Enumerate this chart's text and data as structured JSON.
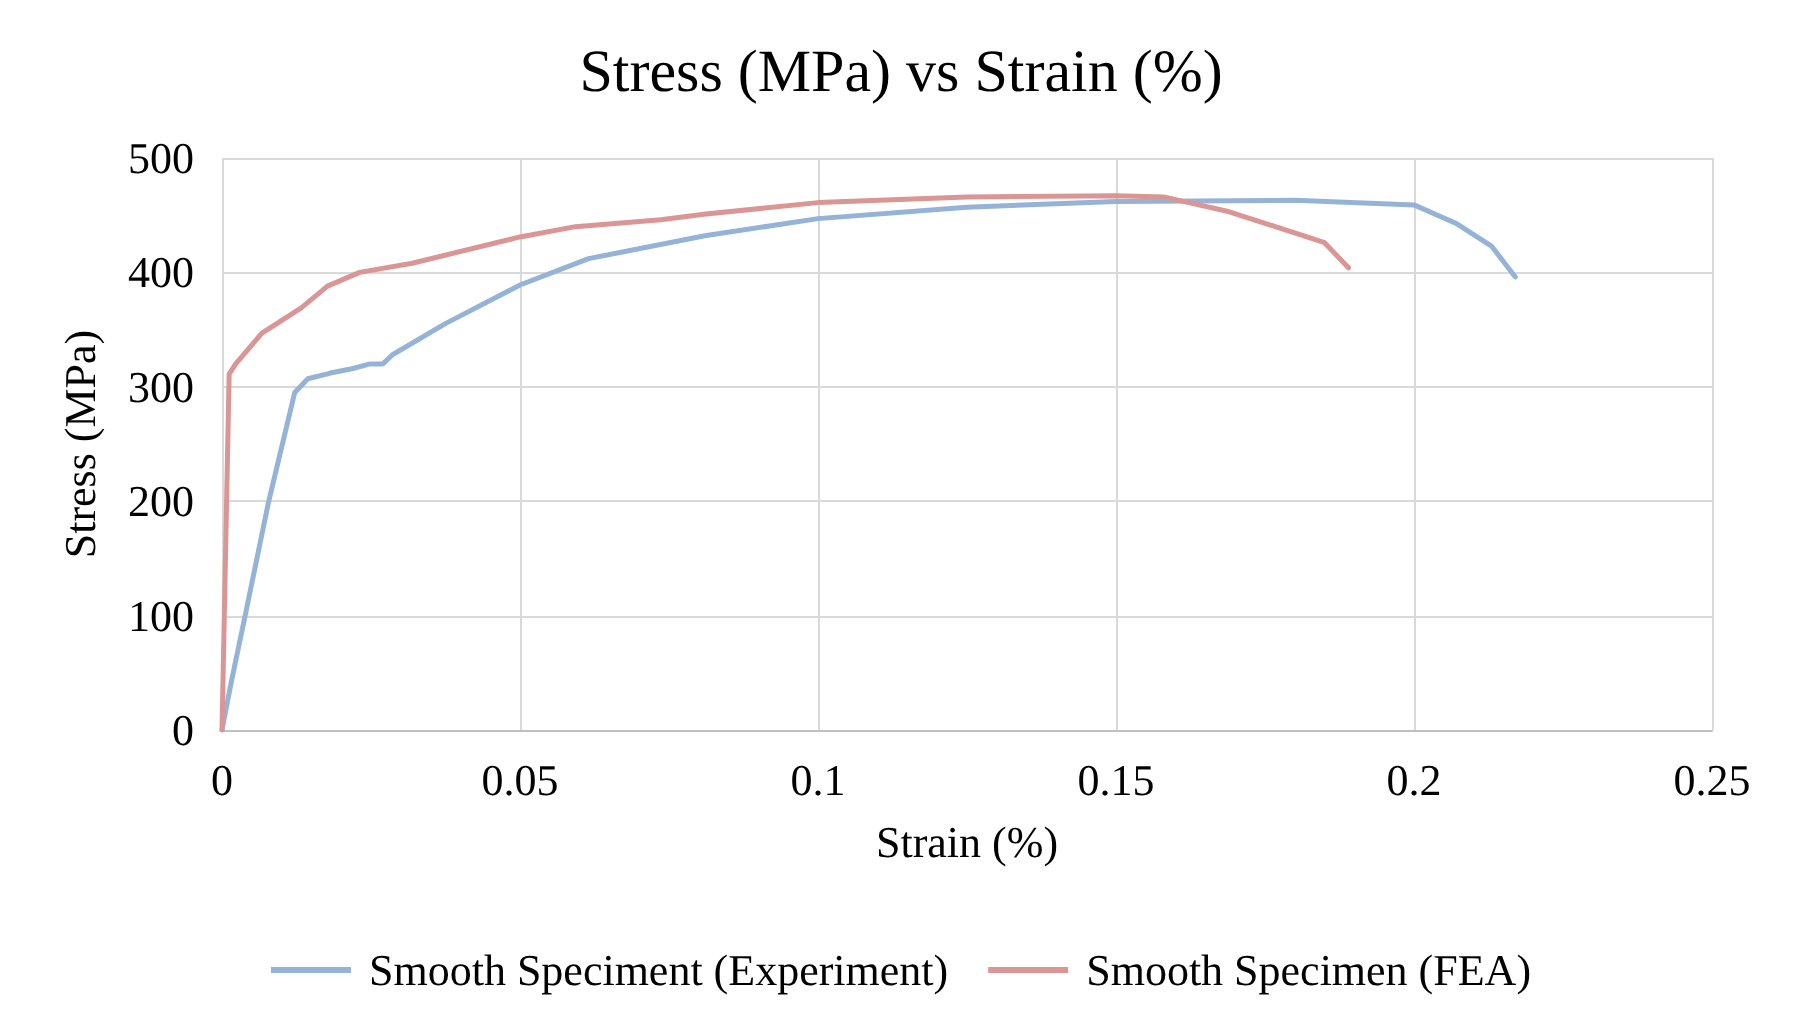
{
  "chart_data": {
    "type": "line",
    "title": "Stress (MPa) vs Strain (%)",
    "xlabel": "Strain (%)",
    "ylabel": "Stress (MPa)",
    "xlim": [
      0,
      0.25
    ],
    "xticks": [
      0,
      0.05,
      0.1,
      0.15,
      0.2,
      0.25
    ],
    "ylim": [
      0,
      500
    ],
    "yticks": [
      0,
      100,
      200,
      300,
      400,
      500
    ],
    "grid": true,
    "legend": "bottom",
    "marker": "none",
    "series": [
      {
        "name": "Smooth Speciment (Experiment)",
        "color": "#95b3d7",
        "x": [
          0,
          0.0016,
          0.004,
          0.0078,
          0.0122,
          0.0144,
          0.0182,
          0.022,
          0.0248,
          0.027,
          0.0286,
          0.0374,
          0.05,
          0.0615,
          0.081,
          0.1,
          0.125,
          0.15,
          0.18,
          0.2,
          0.207,
          0.213,
          0.217
        ],
        "values": [
          0,
          43,
          103,
          199,
          295,
          307,
          312,
          316,
          320,
          320,
          328,
          355,
          389,
          412,
          432,
          447,
          457,
          462,
          463,
          459,
          443,
          423,
          396
        ]
      },
      {
        "name": "Smooth Specimen (FEA)",
        "color": "#d99694",
        "x": [
          0,
          0.0012,
          0.0023,
          0.0067,
          0.0133,
          0.0177,
          0.0231,
          0.0319,
          0.05,
          0.0593,
          0.0736,
          0.0812,
          0.1,
          0.125,
          0.15,
          0.158,
          0.169,
          0.185,
          0.189
        ],
        "values": [
          0,
          311,
          320,
          347,
          369,
          388,
          400,
          408,
          431,
          440,
          446,
          451,
          461,
          466,
          467,
          466,
          453,
          426,
          404
        ]
      }
    ]
  }
}
